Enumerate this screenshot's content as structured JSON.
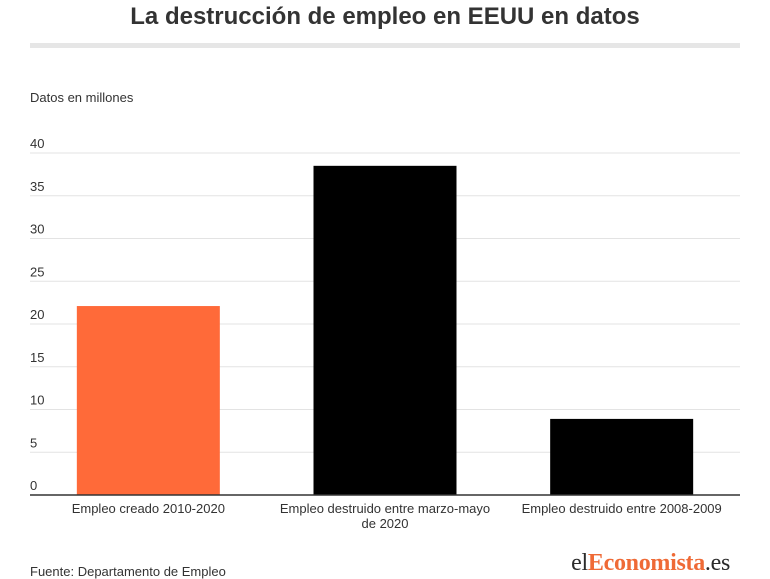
{
  "title": "La destrucción de empleo en EEUU en datos",
  "y_unit_label": "Datos en millones",
  "source": "Fuente: Departamento de Empleo",
  "logo": {
    "part1": "el",
    "part2": "Economista",
    "part3": ".es",
    "accent_color": "#ef6a36"
  },
  "chart_data": {
    "type": "bar",
    "categories": [
      [
        "Empleo creado 2010-2020"
      ],
      [
        "Empleo destruido entre marzo-mayo",
        "de 2020"
      ],
      [
        "Empleo destruido entre 2008-2009"
      ]
    ],
    "values": [
      22.1,
      38.5,
      8.9
    ],
    "colors": [
      "#ff6a39",
      "#000000",
      "#000000"
    ],
    "ylim": [
      0,
      40
    ],
    "yticks": [
      0,
      5,
      10,
      15,
      20,
      25,
      30,
      35,
      40
    ],
    "grid": true,
    "xlabel": "",
    "ylabel": ""
  }
}
